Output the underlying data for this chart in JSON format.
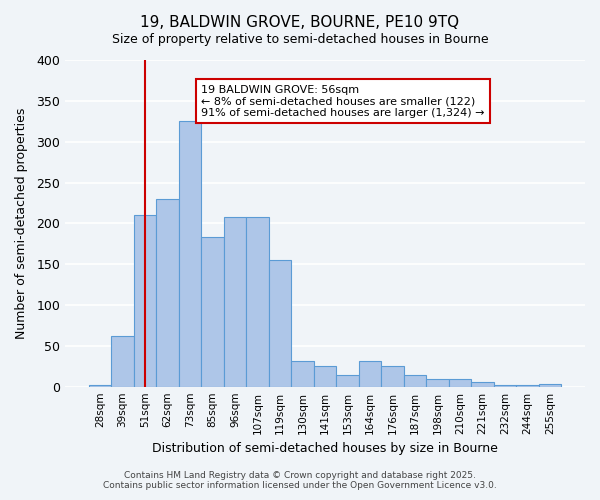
{
  "title": "19, BALDWIN GROVE, BOURNE, PE10 9TQ",
  "subtitle": "Size of property relative to semi-detached houses in Bourne",
  "bar_labels": [
    "28sqm",
    "39sqm",
    "51sqm",
    "62sqm",
    "73sqm",
    "85sqm",
    "96sqm",
    "107sqm",
    "119sqm",
    "130sqm",
    "141sqm",
    "153sqm",
    "164sqm",
    "176sqm",
    "187sqm",
    "198sqm",
    "210sqm",
    "221sqm",
    "232sqm",
    "244sqm",
    "255sqm"
  ],
  "bar_values": [
    2,
    62,
    210,
    230,
    325,
    183,
    208,
    208,
    155,
    32,
    25,
    14,
    32,
    25,
    14,
    10,
    10,
    6,
    2,
    2,
    3
  ],
  "bar_color": "#aec6e8",
  "bar_edge_color": "#5b9bd5",
  "vline_x": 2,
  "vline_color": "#cc0000",
  "ylabel": "Number of semi-detached properties",
  "xlabel": "Distribution of semi-detached houses by size in Bourne",
  "ylim": [
    0,
    400
  ],
  "yticks": [
    0,
    50,
    100,
    150,
    200,
    250,
    300,
    350,
    400
  ],
  "annotation_title": "19 BALDWIN GROVE: 56sqm",
  "annotation_line1": "← 8% of semi-detached houses are smaller (122)",
  "annotation_line2": "91% of semi-detached houses are larger (1,324) →",
  "annotation_box_color": "#cc0000",
  "footer_line1": "Contains HM Land Registry data © Crown copyright and database right 2025.",
  "footer_line2": "Contains public sector information licensed under the Open Government Licence v3.0.",
  "bg_color": "#f0f4f8",
  "grid_color": "#ffffff"
}
